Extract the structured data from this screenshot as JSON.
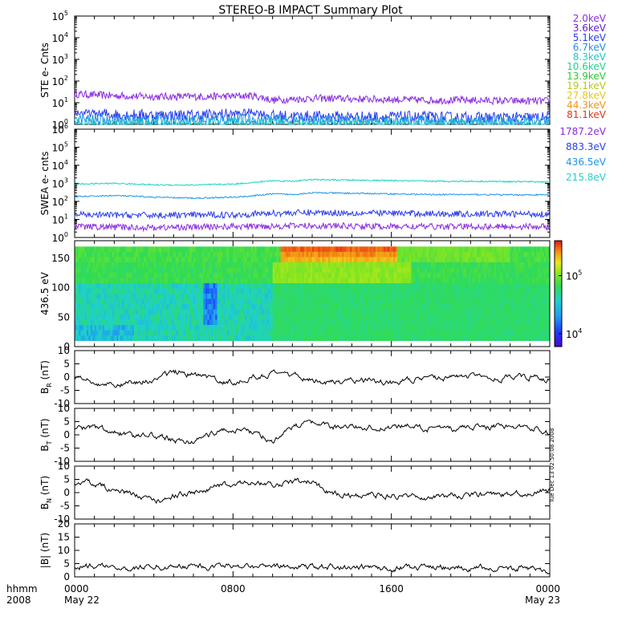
{
  "title": "STEREO-B IMPACT Summary Plot",
  "timestamp": "Tue Dec 13 02:50:08 2008",
  "chart_data": [
    {
      "id": "ste",
      "type": "line",
      "ylabel": "STE e- Cnts",
      "scale": "log",
      "ylim": [
        1,
        100000
      ],
      "yticks": [
        1,
        10,
        100,
        1000,
        10000,
        100000
      ],
      "legend": [
        {
          "label": "2.0keV",
          "color": "#8a2be2"
        },
        {
          "label": "3.6keV",
          "color": "#5a1ed6"
        },
        {
          "label": "5.1keV",
          "color": "#2a3cf0"
        },
        {
          "label": "6.7keV",
          "color": "#1e90e6"
        },
        {
          "label": "8.3keV",
          "color": "#1ec8c8"
        },
        {
          "label": "10.6keV",
          "color": "#1ed28c"
        },
        {
          "label": "13.9keV",
          "color": "#32c832"
        },
        {
          "label": "19.1keV",
          "color": "#b4c81e"
        },
        {
          "label": "27.8keV",
          "color": "#e6c81e"
        },
        {
          "label": "44.3keV",
          "color": "#f09614"
        },
        {
          "label": "81.1keV",
          "color": "#e63214"
        }
      ],
      "series": [
        {
          "legend": "2.0keV",
          "color": "#8a2be2",
          "x": [
            0,
            2,
            4,
            6,
            8,
            9,
            10,
            12,
            14,
            16,
            18,
            20,
            22,
            24
          ],
          "y": [
            25,
            21,
            19,
            19,
            20,
            21,
            13,
            16,
            15,
            14,
            13,
            13,
            12,
            12
          ]
        },
        {
          "legend": "3.6keV",
          "color": "#2a3cf0",
          "x": [
            0,
            2,
            4,
            6,
            8,
            9,
            10,
            12,
            14,
            16,
            18,
            20,
            22,
            24
          ],
          "y": [
            3.5,
            2.8,
            2.6,
            2.6,
            3,
            3.8,
            2.4,
            2.3,
            2.2,
            2.2,
            2.1,
            2,
            2,
            2
          ]
        },
        {
          "legend": "5.1keV",
          "color": "#1e90e6",
          "x": [
            0,
            4,
            8,
            12,
            16,
            20,
            24
          ],
          "y": [
            1.6,
            1.5,
            1.7,
            1.4,
            1.4,
            1.3,
            1.3
          ]
        },
        {
          "legend": "6.7keV",
          "color": "#1ec8c8",
          "x": [
            0,
            4,
            8,
            12,
            16,
            20,
            24
          ],
          "y": [
            1.1,
            1.05,
            1.1,
            1.05,
            1.0,
            1.0,
            1.0
          ]
        }
      ]
    },
    {
      "id": "swea",
      "type": "line",
      "ylabel": "SWEA e- cnts",
      "scale": "log",
      "ylim": [
        1,
        1000000
      ],
      "yticks": [
        1,
        10,
        100,
        1000,
        10000,
        100000,
        1000000
      ],
      "legend": [
        {
          "label": "1787.2eV",
          "color": "#8a2be2"
        },
        {
          "label": "883.3eV",
          "color": "#2a3cf0"
        },
        {
          "label": "436.5eV",
          "color": "#1e96e6"
        },
        {
          "label": "215.8eV",
          "color": "#1ed2c8"
        }
      ],
      "series": [
        {
          "legend": "215.8eV",
          "color": "#1ed2c8",
          "x": [
            0,
            2,
            4,
            6,
            8,
            9,
            10,
            11,
            12,
            14,
            16,
            18,
            20,
            22,
            24
          ],
          "y": [
            900,
            1000,
            820,
            800,
            900,
            1100,
            1400,
            1300,
            1600,
            1500,
            1400,
            1300,
            1300,
            1250,
            1200
          ]
        },
        {
          "legend": "436.5eV",
          "color": "#1e96e6",
          "x": [
            0,
            2,
            4,
            6,
            8,
            9,
            10,
            11,
            12,
            14,
            16,
            18,
            20,
            22,
            24
          ],
          "y": [
            180,
            210,
            170,
            150,
            170,
            200,
            260,
            240,
            300,
            280,
            260,
            240,
            240,
            230,
            230
          ]
        },
        {
          "legend": "883.3eV",
          "color": "#2a3cf0",
          "x": [
            0,
            4,
            8,
            10,
            12,
            16,
            20,
            24
          ],
          "y": [
            18,
            17,
            18,
            22,
            24,
            22,
            20,
            20
          ]
        },
        {
          "legend": "1787.2eV",
          "color": "#8a2be2",
          "x": [
            0,
            4,
            8,
            12,
            16,
            20,
            24
          ],
          "y": [
            4,
            3.5,
            4,
            4.5,
            4,
            4,
            4
          ]
        }
      ]
    },
    {
      "id": "pad",
      "type": "heatmap",
      "ylabel": "436.5 eV",
      "ylim": [
        0,
        180
      ],
      "yticks": [
        0,
        50,
        100,
        150
      ],
      "colorbar_ticks": [
        "10^4",
        "10^5"
      ],
      "colorbar_range": [
        6000,
        400000
      ],
      "note": "pitch angle distribution; high flux near 150-170 deg from ~1030 to ~1630"
    },
    {
      "id": "br",
      "type": "line",
      "ylabel": "B_R (nT)",
      "ylim": [
        -10,
        10
      ],
      "yticks": [
        -10,
        -5,
        0,
        5,
        10
      ],
      "series": [
        {
          "color": "#000000",
          "x": [
            0,
            1,
            2,
            3,
            4,
            5,
            6,
            7,
            8,
            9,
            10,
            11,
            12,
            13,
            14,
            15,
            16,
            17,
            18,
            19,
            20,
            21,
            22,
            23,
            24
          ],
          "y": [
            -1,
            -2,
            -3,
            -2,
            -1,
            2,
            1,
            -1,
            -2,
            0,
            1,
            1,
            -1,
            -2,
            -1,
            -1,
            -2,
            -1,
            -1,
            0,
            0,
            -1,
            0,
            0,
            -1
          ]
        }
      ]
    },
    {
      "id": "bt",
      "type": "line",
      "ylabel": "B_T (nT)",
      "ylim": [
        -10,
        10
      ],
      "yticks": [
        -10,
        -5,
        0,
        5,
        10
      ],
      "series": [
        {
          "color": "#000000",
          "x": [
            0,
            1,
            2,
            3,
            4,
            5,
            6,
            7,
            8,
            9,
            10,
            11,
            12,
            13,
            14,
            15,
            16,
            17,
            18,
            19,
            20,
            21,
            22,
            23,
            24
          ],
          "y": [
            2,
            3,
            1,
            -1,
            0,
            -2,
            -3,
            1,
            2,
            1,
            -2,
            3,
            4,
            3,
            3,
            3,
            3,
            3,
            2,
            2,
            3,
            3,
            3,
            3,
            1
          ]
        }
      ]
    },
    {
      "id": "bn",
      "type": "line",
      "ylabel": "B_N (nT)",
      "ylim": [
        -10,
        10
      ],
      "yticks": [
        -10,
        -5,
        0,
        5,
        10
      ],
      "series": [
        {
          "color": "#000000",
          "x": [
            0,
            1,
            2,
            3,
            4,
            5,
            6,
            7,
            8,
            9,
            10,
            11,
            12,
            13,
            14,
            15,
            16,
            17,
            18,
            19,
            20,
            21,
            22,
            23,
            24
          ],
          "y": [
            4,
            3,
            1,
            -1,
            -3,
            -1,
            0,
            2,
            3,
            4,
            3,
            4,
            4,
            0,
            -1,
            -1,
            -1,
            -1,
            -2,
            -1,
            -1,
            -1,
            -1,
            0,
            1
          ]
        }
      ]
    },
    {
      "id": "bmag",
      "type": "line",
      "ylabel": "|B| (nT)",
      "ylim": [
        0,
        20
      ],
      "yticks": [
        0,
        5,
        10,
        15,
        20
      ],
      "series": [
        {
          "color": "#000000",
          "x": [
            0,
            1,
            2,
            3,
            4,
            5,
            6,
            7,
            8,
            9,
            10,
            11,
            12,
            13,
            14,
            15,
            16,
            17,
            18,
            19,
            20,
            21,
            22,
            23,
            24
          ],
          "y": [
            4,
            4,
            3.5,
            3.5,
            4,
            4,
            4,
            4,
            4.5,
            4,
            4,
            4,
            4,
            4,
            3.5,
            3.5,
            3.5,
            3.5,
            3.5,
            3.5,
            3.5,
            3.5,
            3.5,
            3,
            2
          ]
        }
      ]
    }
  ],
  "time_axis": {
    "range_hours": [
      0,
      24
    ],
    "row1_label": "hhmm",
    "row2_label": "2008",
    "ticks": [
      {
        "hour": 0,
        "label": "0000",
        "date": "May 22"
      },
      {
        "hour": 8,
        "label": "0800",
        "date": ""
      },
      {
        "hour": 16,
        "label": "1600",
        "date": ""
      },
      {
        "hour": 24,
        "label": "0000",
        "date": "May 23"
      }
    ]
  }
}
